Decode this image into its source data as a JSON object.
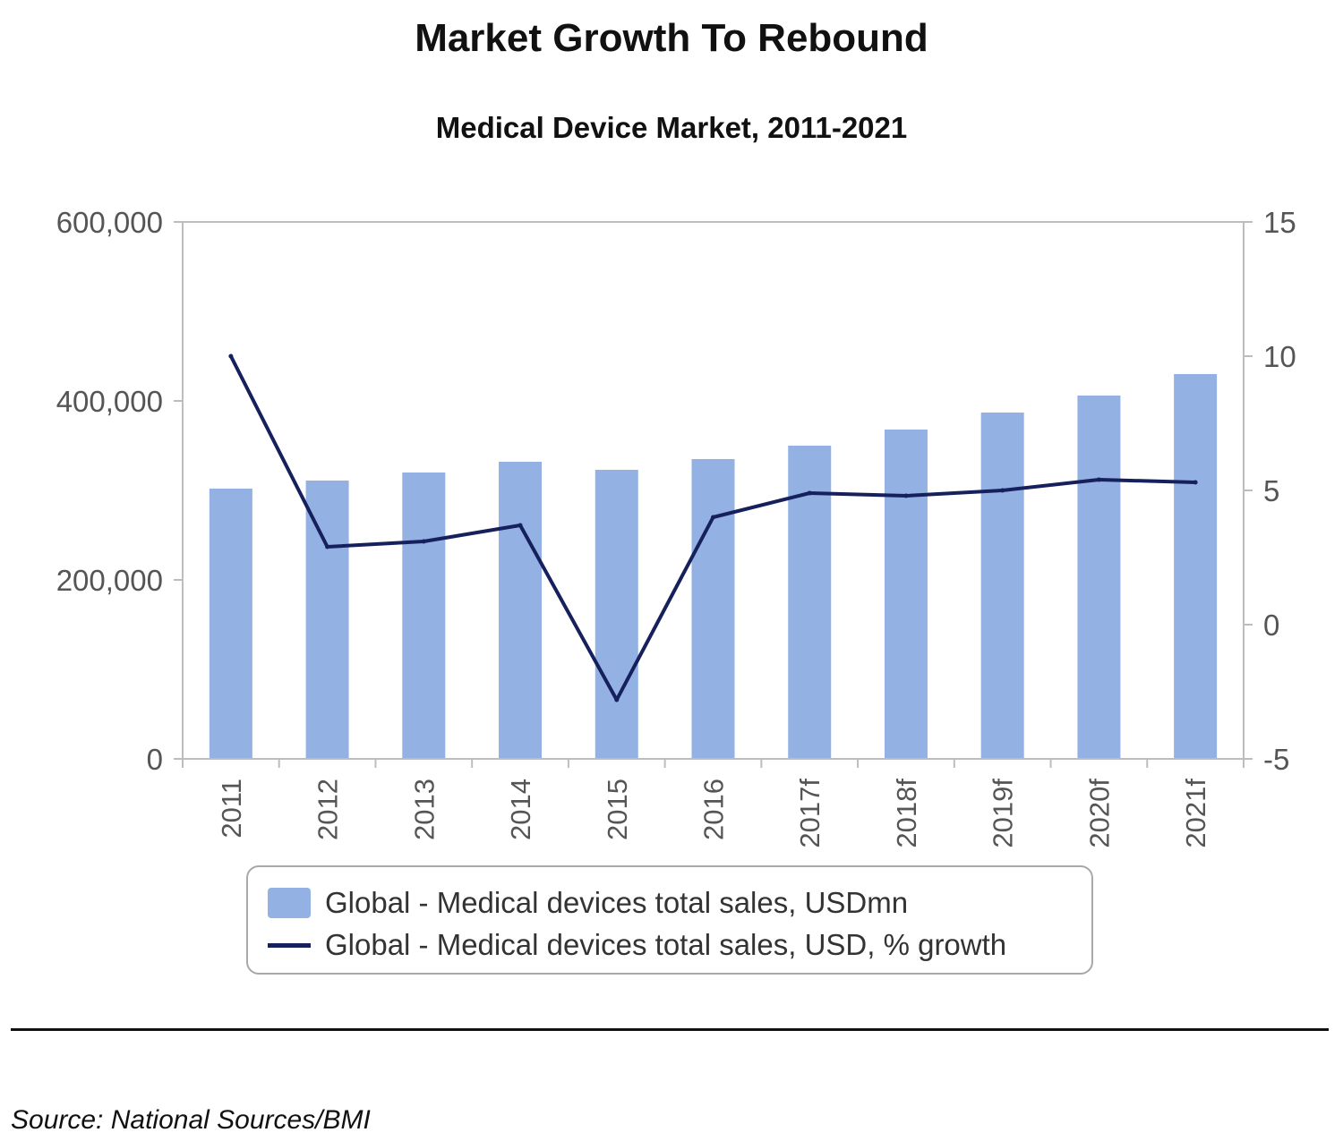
{
  "title": "Market Growth To Rebound",
  "subtitle": "Medical Device Market, 2011-2021",
  "source": "Source: National Sources/BMI",
  "colors": {
    "bar": "#93b2e3",
    "line": "#16205c",
    "axis": "#bdbdbd",
    "tick_text": "#555555"
  },
  "chart_data": {
    "type": "bar",
    "categories": [
      "2011",
      "2012",
      "2013",
      "2014",
      "2015",
      "2016",
      "2017f",
      "2018f",
      "2019f",
      "2020f",
      "2021f"
    ],
    "series": [
      {
        "name": "Global - Medical devices total sales, USDmn",
        "type": "bar",
        "axis": "left",
        "values": [
          302000,
          311000,
          320000,
          332000,
          323000,
          335000,
          350000,
          368000,
          387000,
          406000,
          430000
        ]
      },
      {
        "name": "Global - Medical devices total sales, USD, % growth",
        "type": "line",
        "axis": "right",
        "values": [
          10.0,
          2.9,
          3.1,
          3.7,
          -2.8,
          4.0,
          4.9,
          4.8,
          5.0,
          5.4,
          5.3
        ]
      }
    ],
    "y_left": {
      "min": 0,
      "max": 600000,
      "ticks": [
        0,
        200000,
        400000,
        600000
      ],
      "tick_labels": [
        "0",
        "200,000",
        "400,000",
        "600,000"
      ]
    },
    "y_right": {
      "min": -5,
      "max": 15,
      "ticks": [
        -5,
        0,
        5,
        10,
        15
      ],
      "tick_labels": [
        "-5",
        "0",
        "5",
        "10",
        "15"
      ]
    },
    "xlabel": "",
    "ylabel": "",
    "grid": false,
    "legend_position": "bottom"
  }
}
